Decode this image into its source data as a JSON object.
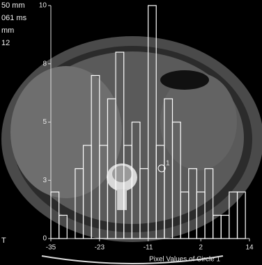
{
  "overlay": {
    "lines": [
      "50 mm",
      "061 ms",
      "mm",
      "12"
    ],
    "corner": "T",
    "roi_label": "1"
  },
  "chart_data": {
    "type": "histogram",
    "xlabel": "Pixel Values of Circle 1",
    "bins": [
      -35,
      -33,
      -31,
      -29,
      -27,
      -25,
      -23,
      -21,
      -19,
      -17,
      -15,
      -13,
      -11,
      -9,
      -7,
      -5,
      -3,
      -1,
      1,
      3,
      5,
      7,
      9,
      11,
      13
    ],
    "values": [
      2,
      1,
      0,
      3,
      4,
      7,
      4,
      6,
      8,
      4,
      5,
      3,
      10,
      4,
      6,
      5,
      2,
      3,
      2,
      3,
      1,
      1,
      2,
      2
    ],
    "xlim": [
      -35,
      14
    ],
    "xticks": [
      -35,
      -23,
      -11,
      2,
      14
    ],
    "ylim": [
      0,
      10
    ],
    "yticks": [
      0,
      {
        "value": 2.5,
        "label": "3"
      },
      5,
      {
        "value": 7.5,
        "label": "8"
      },
      10
    ],
    "color": "#ffffff"
  }
}
